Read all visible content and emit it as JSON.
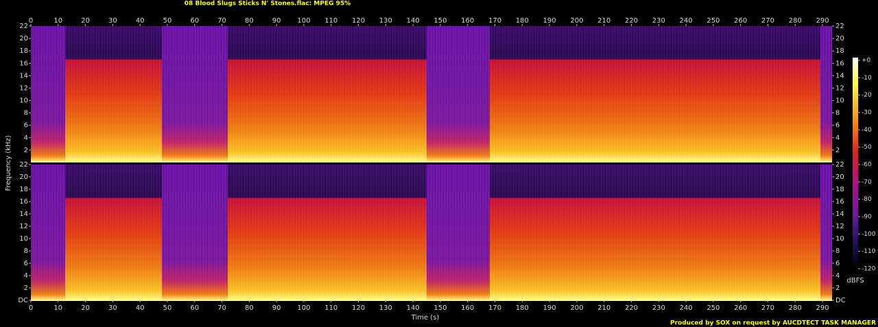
{
  "chart_data": {
    "type": "spectrogram",
    "title": "08 Blood Slugs Sticks N' Stones.flac: MPEG 95%",
    "x_label": "Time (s)",
    "y_label": "Frequency (kHz)",
    "xlim": [
      0,
      293.5
    ],
    "xticks": [
      0,
      10,
      20,
      30,
      40,
      50,
      60,
      70,
      80,
      90,
      100,
      110,
      120,
      130,
      140,
      150,
      160,
      170,
      180,
      190,
      200,
      210,
      220,
      230,
      240,
      250,
      260,
      270,
      280,
      290
    ],
    "channels": [
      {
        "ylim": [
          0,
          22
        ],
        "yticks": [
          2,
          4,
          6,
          8,
          10,
          12,
          14,
          16,
          18,
          20,
          22
        ]
      },
      {
        "ylim": [
          0,
          22
        ],
        "yticks": [
          {
            "value": 0,
            "label": "DC"
          },
          2,
          4,
          6,
          8,
          10,
          12,
          14,
          16,
          18,
          20,
          22
        ]
      }
    ],
    "colorbar": {
      "label": "dBFS",
      "lim": [
        -120,
        0
      ],
      "ticks": [
        {
          "value": 0,
          "label": "+0"
        },
        -10,
        -20,
        -30,
        -40,
        -50,
        -60,
        -70,
        -80,
        -90,
        -100,
        -110,
        -120
      ]
    },
    "footer": "Produced by SOX on request by AUCDTECT TASK MANAGER"
  }
}
